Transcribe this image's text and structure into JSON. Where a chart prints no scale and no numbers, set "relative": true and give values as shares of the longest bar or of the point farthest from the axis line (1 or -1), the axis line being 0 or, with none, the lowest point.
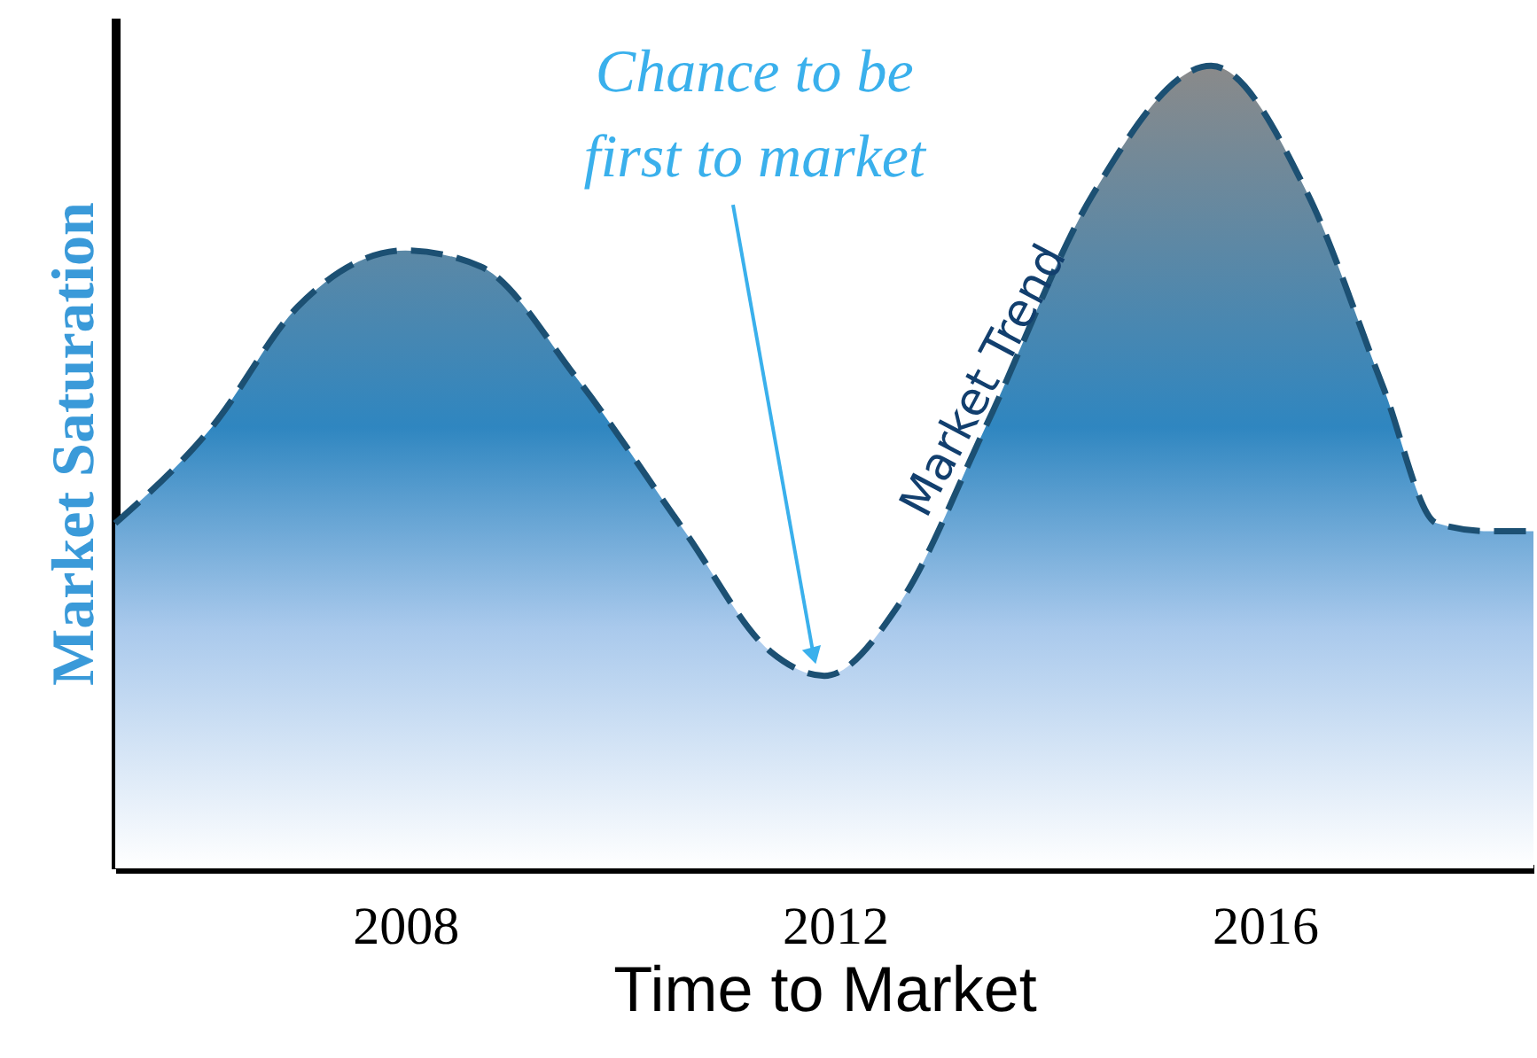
{
  "chart_data": {
    "type": "area",
    "relative": true,
    "xlabel": "Time to Market",
    "ylabel": "Market Saturation",
    "line_style": "dashed",
    "grid": false,
    "xlim": [
      2005.3,
      2018.5
    ],
    "xticks": [
      2008,
      2012,
      2016
    ],
    "series": [
      {
        "color": "#2f86c0",
        "x": [
          2005.3,
          2006.2,
          2007.0,
          2008.0,
          2008.7,
          2009.6,
          2010.6,
          2011.4,
          2011.9,
          2012.6,
          2013.4,
          2014.4,
          2015.5,
          2016.4,
          2017.1,
          2017.6,
          2018.1,
          2018.5
        ],
        "values": [
          0.43,
          0.55,
          0.7,
          0.77,
          0.75,
          0.61,
          0.42,
          0.27,
          0.24,
          0.33,
          0.55,
          0.84,
          1.0,
          0.84,
          0.6,
          0.43,
          0.42,
          0.42
        ]
      }
    ],
    "annotations": [
      {
        "text": "Chance to be first to market",
        "x": 2011.8,
        "y": 0.25
      },
      "Market Trend"
    ]
  }
}
